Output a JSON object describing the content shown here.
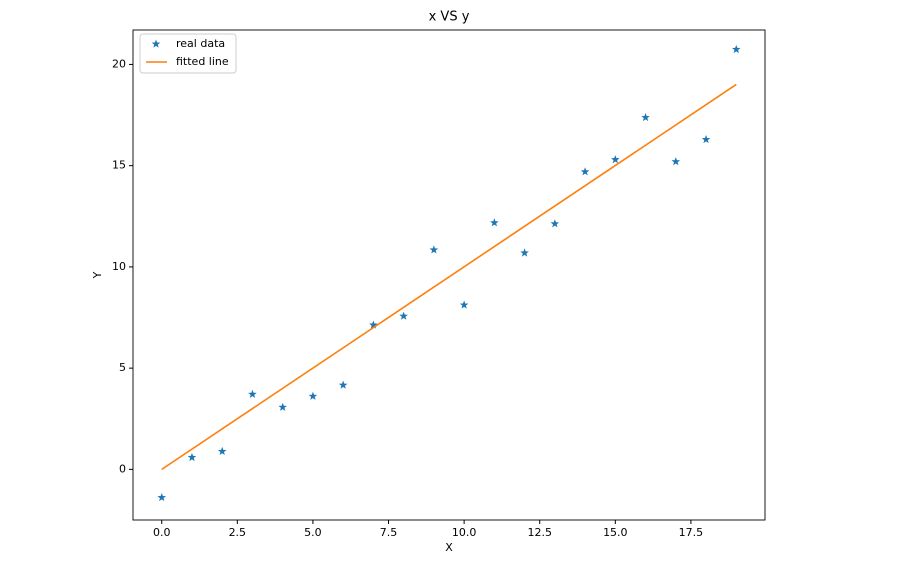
{
  "chart_data": {
    "type": "scatter",
    "title": "x VS y",
    "x_label": "X",
    "y_label": "Y",
    "series": [
      {
        "name": "real data",
        "color": "#1f77b4",
        "style": "markers",
        "x": [
          0,
          1,
          2,
          3,
          4,
          5,
          6,
          7,
          8,
          9,
          10,
          11,
          12,
          13,
          14,
          15,
          16,
          17,
          18,
          19
        ],
        "values": [
          -1.39,
          0.59,
          0.89,
          3.71,
          3.07,
          3.61,
          4.16,
          7.13,
          7.57,
          10.84,
          8.12,
          12.18,
          10.69,
          12.13,
          14.7,
          15.3,
          17.38,
          15.2,
          16.29,
          20.74
        ]
      },
      {
        "name": "fitted line",
        "color": "#ff7f0e",
        "style": "line",
        "x": [
          0,
          19
        ],
        "values": [
          0,
          19.01
        ]
      }
    ],
    "xlim": [
      -0.95,
      19.95
    ],
    "ylim": [
      -2.5,
      21.7
    ],
    "xticks": [
      {
        "value": 0,
        "label": "0.0"
      },
      {
        "value": 2.5,
        "label": "2.5"
      },
      {
        "value": 5,
        "label": "5.0"
      },
      {
        "value": 7.5,
        "label": "7.5"
      },
      {
        "value": 10,
        "label": "10.0"
      },
      {
        "value": 12.5,
        "label": "12.5"
      },
      {
        "value": 15,
        "label": "15.0"
      },
      {
        "value": 17.5,
        "label": "17.5"
      }
    ],
    "yticks": [
      0,
      5,
      10,
      15,
      20
    ],
    "grid": false,
    "legend": "upper-left"
  }
}
